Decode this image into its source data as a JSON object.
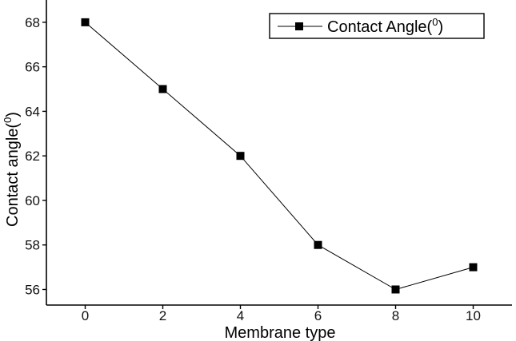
{
  "chart_data": {
    "type": "line",
    "xlabel": "Membrane type",
    "ylabel": "Contact angle(",
    "ylabel_sup": "0",
    "ylabel_close": ")",
    "xlim": [
      -1,
      11
    ],
    "ylim": [
      55.3,
      69
    ],
    "xticks": [
      0,
      2,
      4,
      6,
      8,
      10
    ],
    "yticks": [
      56,
      58,
      60,
      62,
      64,
      66,
      68
    ],
    "grid": false,
    "legend_position": "top-right",
    "series": [
      {
        "name": "Contact Angle(",
        "name_sup": "0",
        "name_close": ")",
        "marker": "square",
        "color": "#000000",
        "x": [
          0,
          2,
          4,
          6,
          8,
          10
        ],
        "y": [
          68,
          65,
          62,
          58,
          56,
          57
        ]
      }
    ]
  }
}
